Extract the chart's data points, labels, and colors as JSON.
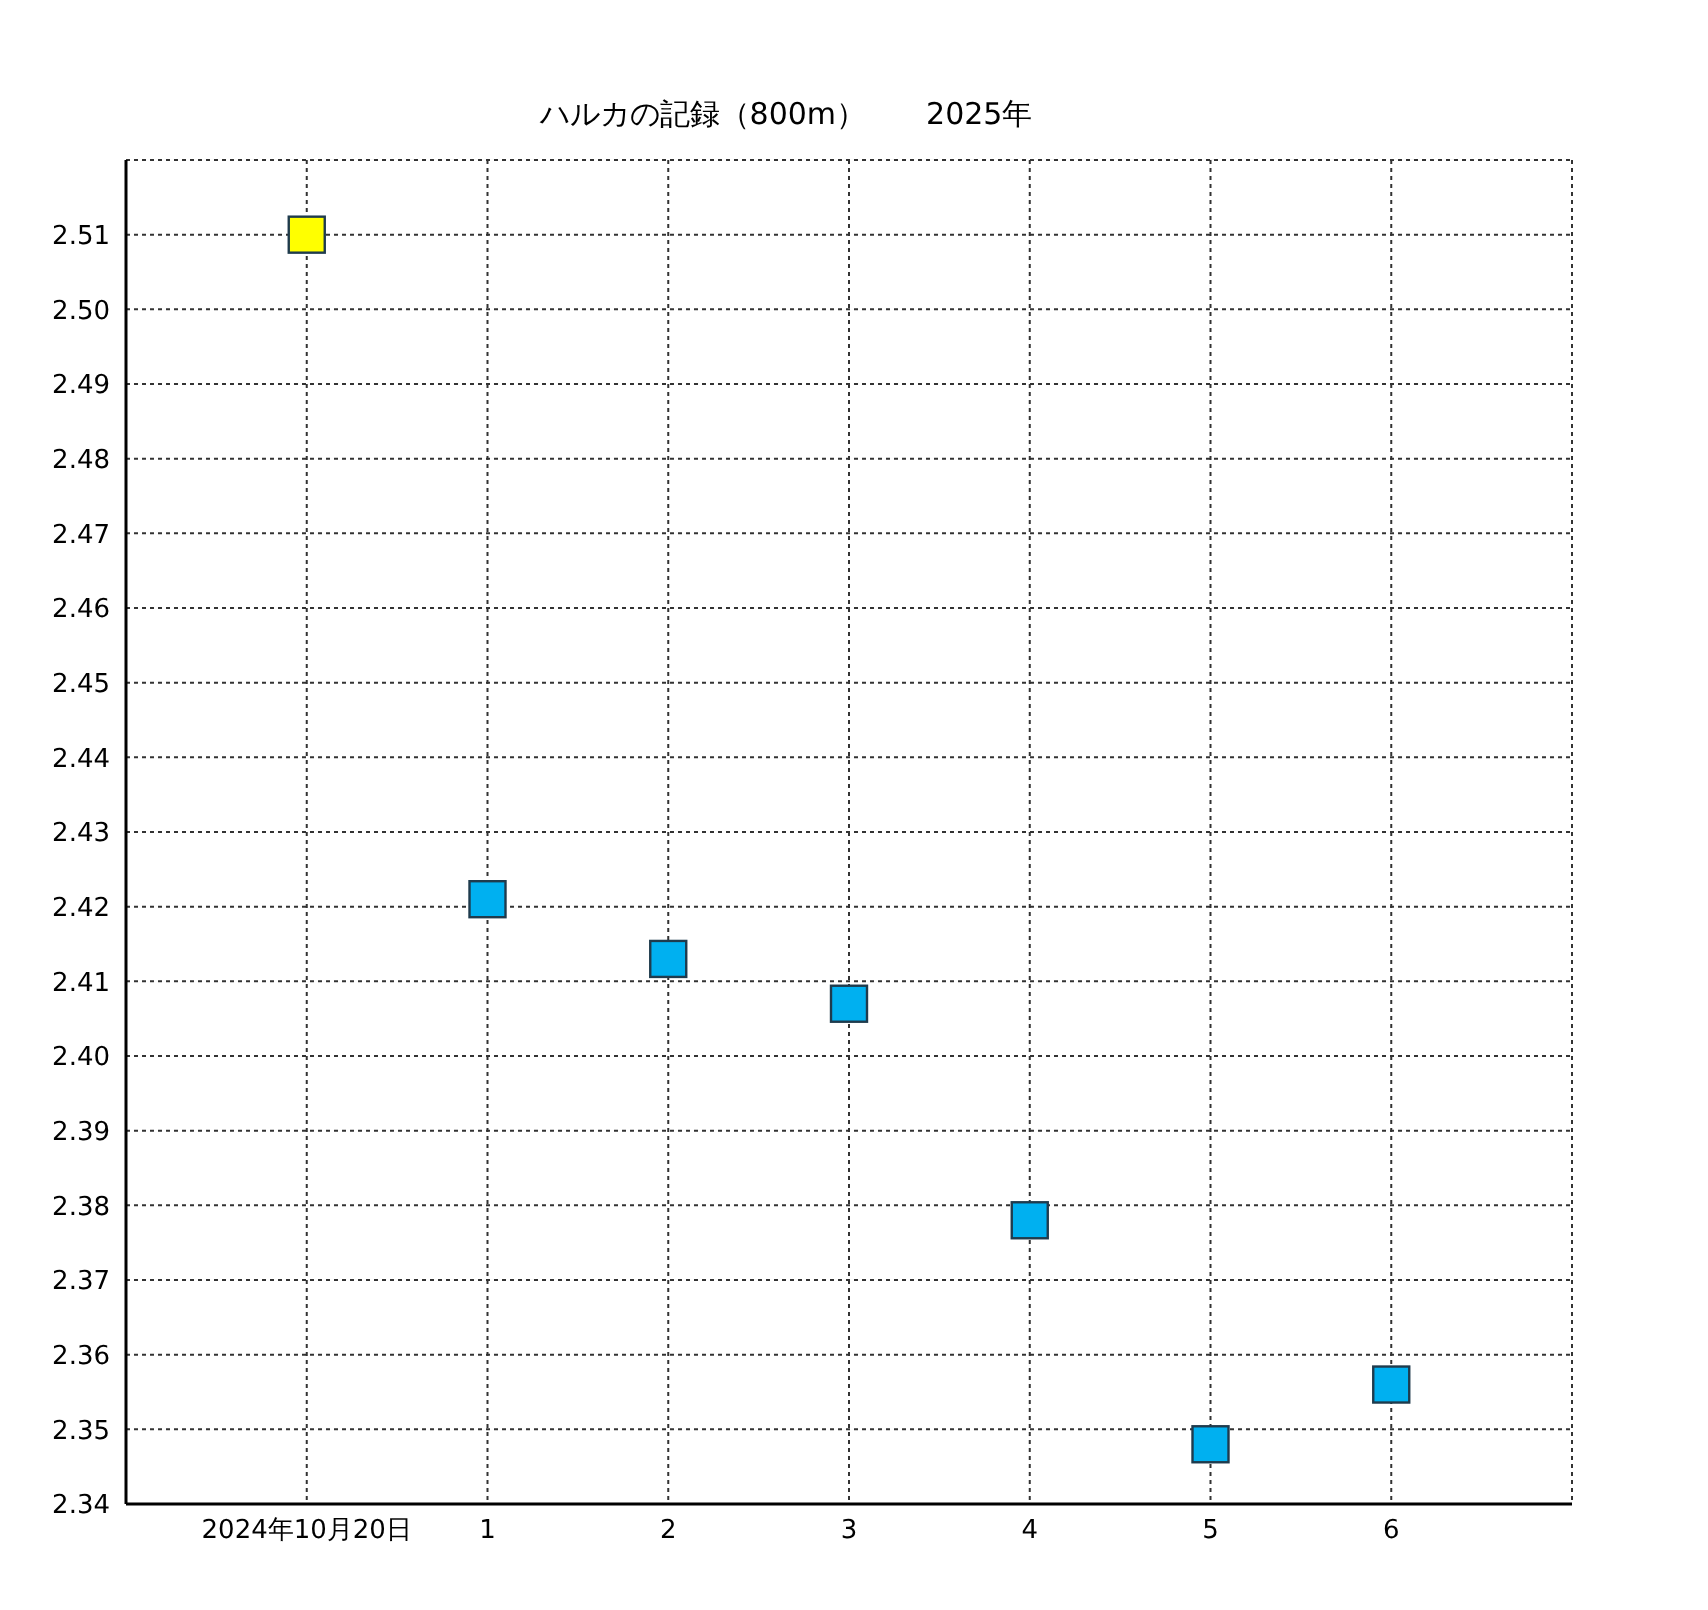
{
  "chart_data": {
    "type": "scatter",
    "title": "ハルカの記録（800m）　　2025年",
    "x": [
      0,
      1,
      2,
      3,
      4,
      5,
      6
    ],
    "xlim": [
      -1,
      7
    ],
    "xticks": [
      {
        "value": 0,
        "label": "2024年10月20日"
      },
      1,
      2,
      3,
      4,
      5,
      6
    ],
    "series": [
      {
        "values": [
          2.51,
          2.421,
          2.413,
          2.407,
          2.378,
          2.348,
          2.356
        ],
        "colors": [
          "#ffff00",
          "#00b0f0",
          "#00b0f0",
          "#00b0f0",
          "#00b0f0",
          "#00b0f0",
          "#00b0f0"
        ]
      }
    ],
    "ylim": [
      2.34,
      2.52
    ],
    "yticks": [
      2.34,
      2.35,
      2.36,
      2.37,
      2.38,
      2.39,
      {
        "value": 2.4,
        "label": "2.40"
      },
      2.41,
      2.42,
      2.43,
      2.44,
      2.45,
      2.46,
      2.47,
      2.48,
      2.49,
      {
        "value": 2.5,
        "label": "2.50"
      },
      2.51
    ],
    "grid": true,
    "marker": "square",
    "legend": false
  }
}
